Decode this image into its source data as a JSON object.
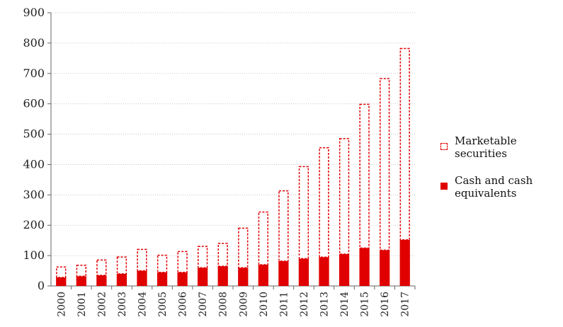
{
  "chart_data": {
    "type": "bar",
    "stacked": true,
    "categories": [
      "2000",
      "2001",
      "2002",
      "2003",
      "2004",
      "2005",
      "2006",
      "2007",
      "2008",
      "2009",
      "2010",
      "2011",
      "2012",
      "2013",
      "2014",
      "2015",
      "2016",
      "2017"
    ],
    "series": [
      {
        "name": "Cash and cash equivalents",
        "values": [
          28,
          32,
          35,
          40,
          50,
          45,
          45,
          60,
          65,
          60,
          70,
          82,
          90,
          95,
          105,
          125,
          118,
          152
        ],
        "style": "solid",
        "color": "#e00000"
      },
      {
        "name": "Marketable securities",
        "values": [
          36,
          38,
          52,
          57,
          72,
          58,
          70,
          72,
          77,
          132,
          175,
          233,
          305,
          362,
          382,
          475,
          567,
          632
        ],
        "style": "dashed",
        "color": "#e00000"
      }
    ],
    "yticks": [
      "0",
      "100",
      "200",
      "300",
      "400",
      "500",
      "600",
      "700",
      "800",
      "900"
    ],
    "ylim": [
      0,
      900
    ],
    "grid": true,
    "legend_position": "right"
  },
  "legend": {
    "items": [
      {
        "label": "Marketable securities"
      },
      {
        "label": "Cash and cash equivalents"
      }
    ]
  }
}
